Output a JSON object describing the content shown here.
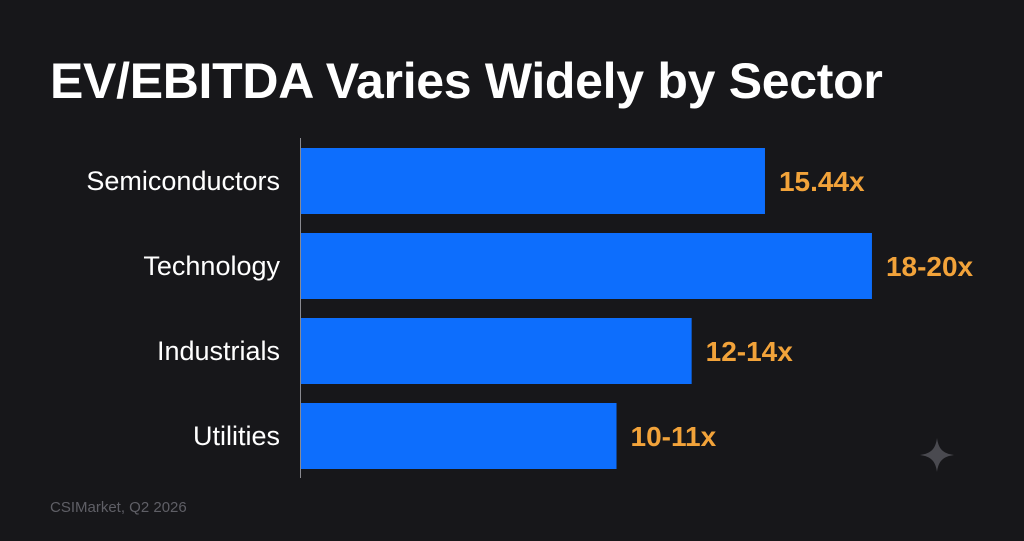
{
  "chart_data": {
    "type": "bar",
    "orientation": "horizontal",
    "title": "EV/EBITDA Varies Widely by Sector",
    "categories": [
      "Semiconductors",
      "Technology",
      "Industrials",
      "Utilities"
    ],
    "values": [
      15.44,
      19,
      13,
      10.5
    ],
    "value_labels": [
      "15.44x",
      "18-20x",
      "12-14x",
      "10-11x"
    ],
    "xlabel": "",
    "ylabel": "",
    "grid": false,
    "bar_color": "#0d6efd",
    "label_color": "#f2a33a",
    "text_color": "#ffffff"
  },
  "source": "CSIMarket, Q2 2026",
  "decor": {
    "icon": "sparkle-icon"
  }
}
